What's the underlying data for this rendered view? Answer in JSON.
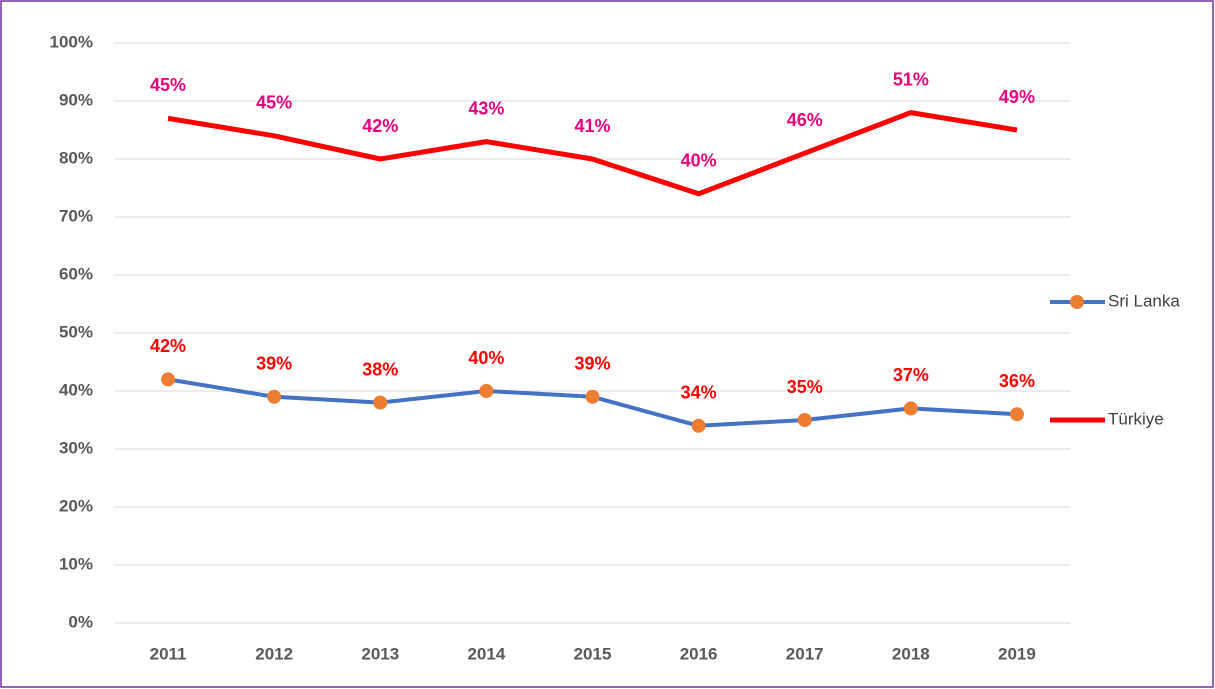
{
  "chart_data": {
    "type": "line",
    "stacked": true,
    "categories": [
      "2011",
      "2012",
      "2013",
      "2014",
      "2015",
      "2016",
      "2017",
      "2018",
      "2019"
    ],
    "series": [
      {
        "name": "Sri Lanka",
        "color": "#4472c4",
        "marker_color": "#ed7d31",
        "label_color": "#ff0000",
        "values": [
          42,
          39,
          38,
          40,
          39,
          34,
          35,
          37,
          36
        ],
        "value_labels": [
          "42%",
          "39%",
          "38%",
          "40%",
          "39%",
          "34%",
          "35%",
          "37%",
          "36%"
        ]
      },
      {
        "name": "Türkiye",
        "color": "#ff0000",
        "label_color": "#e6007e",
        "values": [
          45,
          45,
          42,
          43,
          41,
          40,
          46,
          51,
          49
        ],
        "value_labels": [
          "45%",
          "45%",
          "42%",
          "43%",
          "41%",
          "40%",
          "46%",
          "51%",
          "49%"
        ]
      }
    ],
    "ylim": [
      0,
      100
    ],
    "yticks": [
      {
        "value": 0,
        "label": "0%"
      },
      {
        "value": 10,
        "label": "10%"
      },
      {
        "value": 20,
        "label": "20%"
      },
      {
        "value": 30,
        "label": "30%"
      },
      {
        "value": 40,
        "label": "40%"
      },
      {
        "value": 50,
        "label": "50%"
      },
      {
        "value": 60,
        "label": "60%"
      },
      {
        "value": 70,
        "label": "70%"
      },
      {
        "value": 80,
        "label": "80%"
      },
      {
        "value": 90,
        "label": "90%"
      },
      {
        "value": 100,
        "label": "100%"
      }
    ],
    "grid": true,
    "legend": "right"
  }
}
